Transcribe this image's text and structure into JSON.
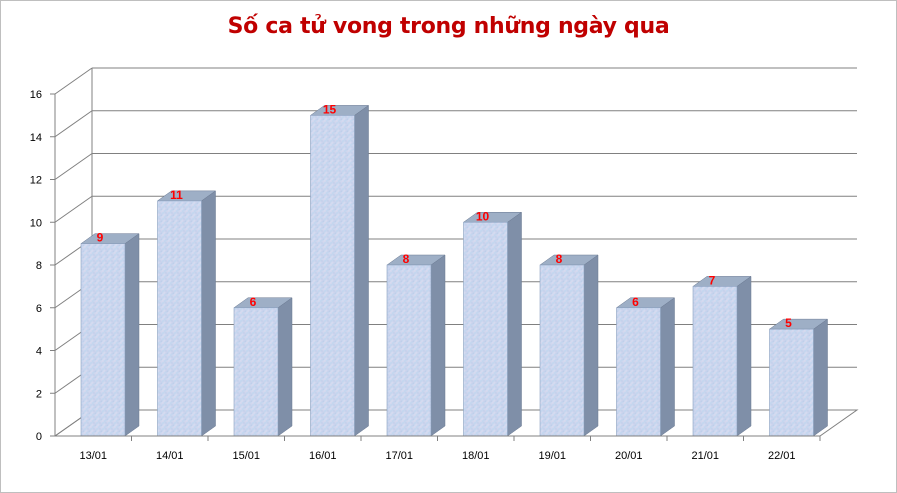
{
  "chart_data": {
    "type": "bar",
    "title": "Số ca tử vong trong những ngày qua",
    "categories": [
      "13/01",
      "14/01",
      "15/01",
      "16/01",
      "17/01",
      "18/01",
      "19/01",
      "20/01",
      "21/01",
      "22/01"
    ],
    "values": [
      9,
      11,
      6,
      15,
      8,
      10,
      8,
      6,
      7,
      5
    ],
    "data_labels": [
      "9",
      "11",
      "6",
      "15",
      "8",
      "10",
      "8",
      "6",
      "7",
      "5"
    ],
    "ylim": [
      0,
      16
    ],
    "yticks": [
      "0",
      "2",
      "4",
      "6",
      "8",
      "10",
      "12",
      "14",
      "16"
    ],
    "grid": true,
    "xlabel": "",
    "ylabel": "",
    "style": "3d-column",
    "colors": {
      "title": "#c00000",
      "data_label": "#ff0000",
      "bar_front": "#c6d9f1",
      "bar_side": "#7f8fa8",
      "bar_top": "#9eafc6",
      "grid": "#808080"
    }
  }
}
